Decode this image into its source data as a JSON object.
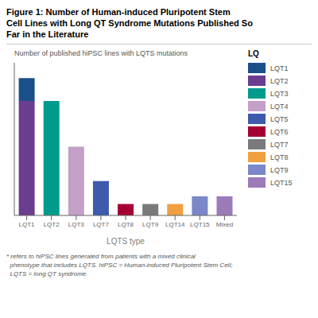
{
  "chart_data": {
    "type": "bar",
    "title": "Figure 1: Number of Human-induced Pluripotent Stem\nCell Lines with Long QT Syndrome Mutations Published So\nFar in the Literature",
    "subtitle": "Number of published hiPSC lines with LQTS mutations",
    "xlabel": "LQTS type",
    "categories": [
      "LQT1",
      "LQT2",
      "LQT3",
      "LQT7",
      "LQT8",
      "LQT9",
      "LQT14",
      "LQT15",
      "Mixed"
    ],
    "stacked": true,
    "series": [
      {
        "values": [
          30,
          30,
          18,
          9,
          3,
          3,
          3,
          5,
          5
        ],
        "colors": [
          "#6a3d8f",
          "#009b8d",
          "#c4a0c8",
          "#3d5aad",
          "#a50034",
          "#7a7a7a",
          "#f0a040",
          "#7b87c8",
          "#9b7bb8"
        ]
      },
      {
        "values": [
          6,
          null,
          null,
          null,
          null,
          null,
          null,
          null,
          null
        ],
        "color": "#1b4f8a"
      }
    ],
    "ylim": [
      0,
      40
    ],
    "tick_labels": "x",
    "grid": false,
    "legend": "right",
    "legend_title": "LQ",
    "legend_entries": [
      {
        "name": "LQT1",
        "color": "#1b4f8a"
      },
      {
        "name": "LQT2",
        "color": "#6a3d8f"
      },
      {
        "name": "LQT3",
        "color": "#009b8d"
      },
      {
        "name": "LQT4",
        "color": "#c4a0c8"
      },
      {
        "name": "LQT5",
        "color": "#3d5aad"
      },
      {
        "name": "LQT6",
        "color": "#a50034"
      },
      {
        "name": "LQT7",
        "color": "#7a7a7a"
      },
      {
        "name": "LQT8",
        "color": "#f0a040"
      },
      {
        "name": "LQT9",
        "color": "#7b87c8"
      },
      {
        "name": "LQT15",
        "color": "#9b7bb8"
      }
    ],
    "footnote": "* refers to hiPSC lines generated from patients with a mixed clinical\n  phenotype that includes LQTS. hiPSC = Human-induced Pluripotent Stem Cell;\n  LQTS = long QT syndrome."
  }
}
